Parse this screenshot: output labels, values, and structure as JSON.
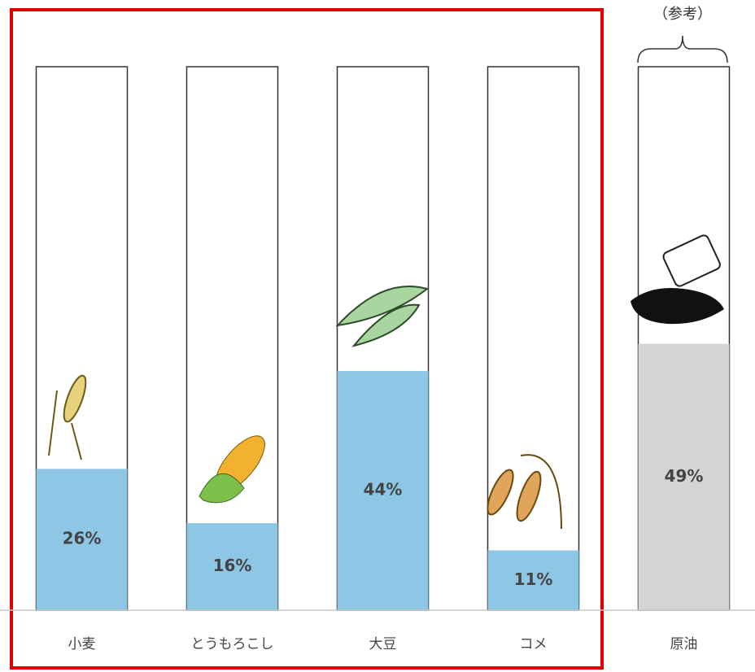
{
  "chart_data": {
    "type": "bar",
    "categories": [
      "小麦",
      "とうもろこし",
      "大豆",
      "コメ",
      "原油"
    ],
    "values": [
      26,
      16,
      44,
      11,
      49
    ],
    "value_labels": [
      "26%",
      "16%",
      "44%",
      "11%",
      "49%"
    ],
    "colors": [
      "#8ec6e6",
      "#8ec6e6",
      "#8ec6e6",
      "#8ec6e6",
      "#d4d4d4"
    ],
    "ylim": [
      0,
      100
    ],
    "annotation": "（参考）"
  }
}
